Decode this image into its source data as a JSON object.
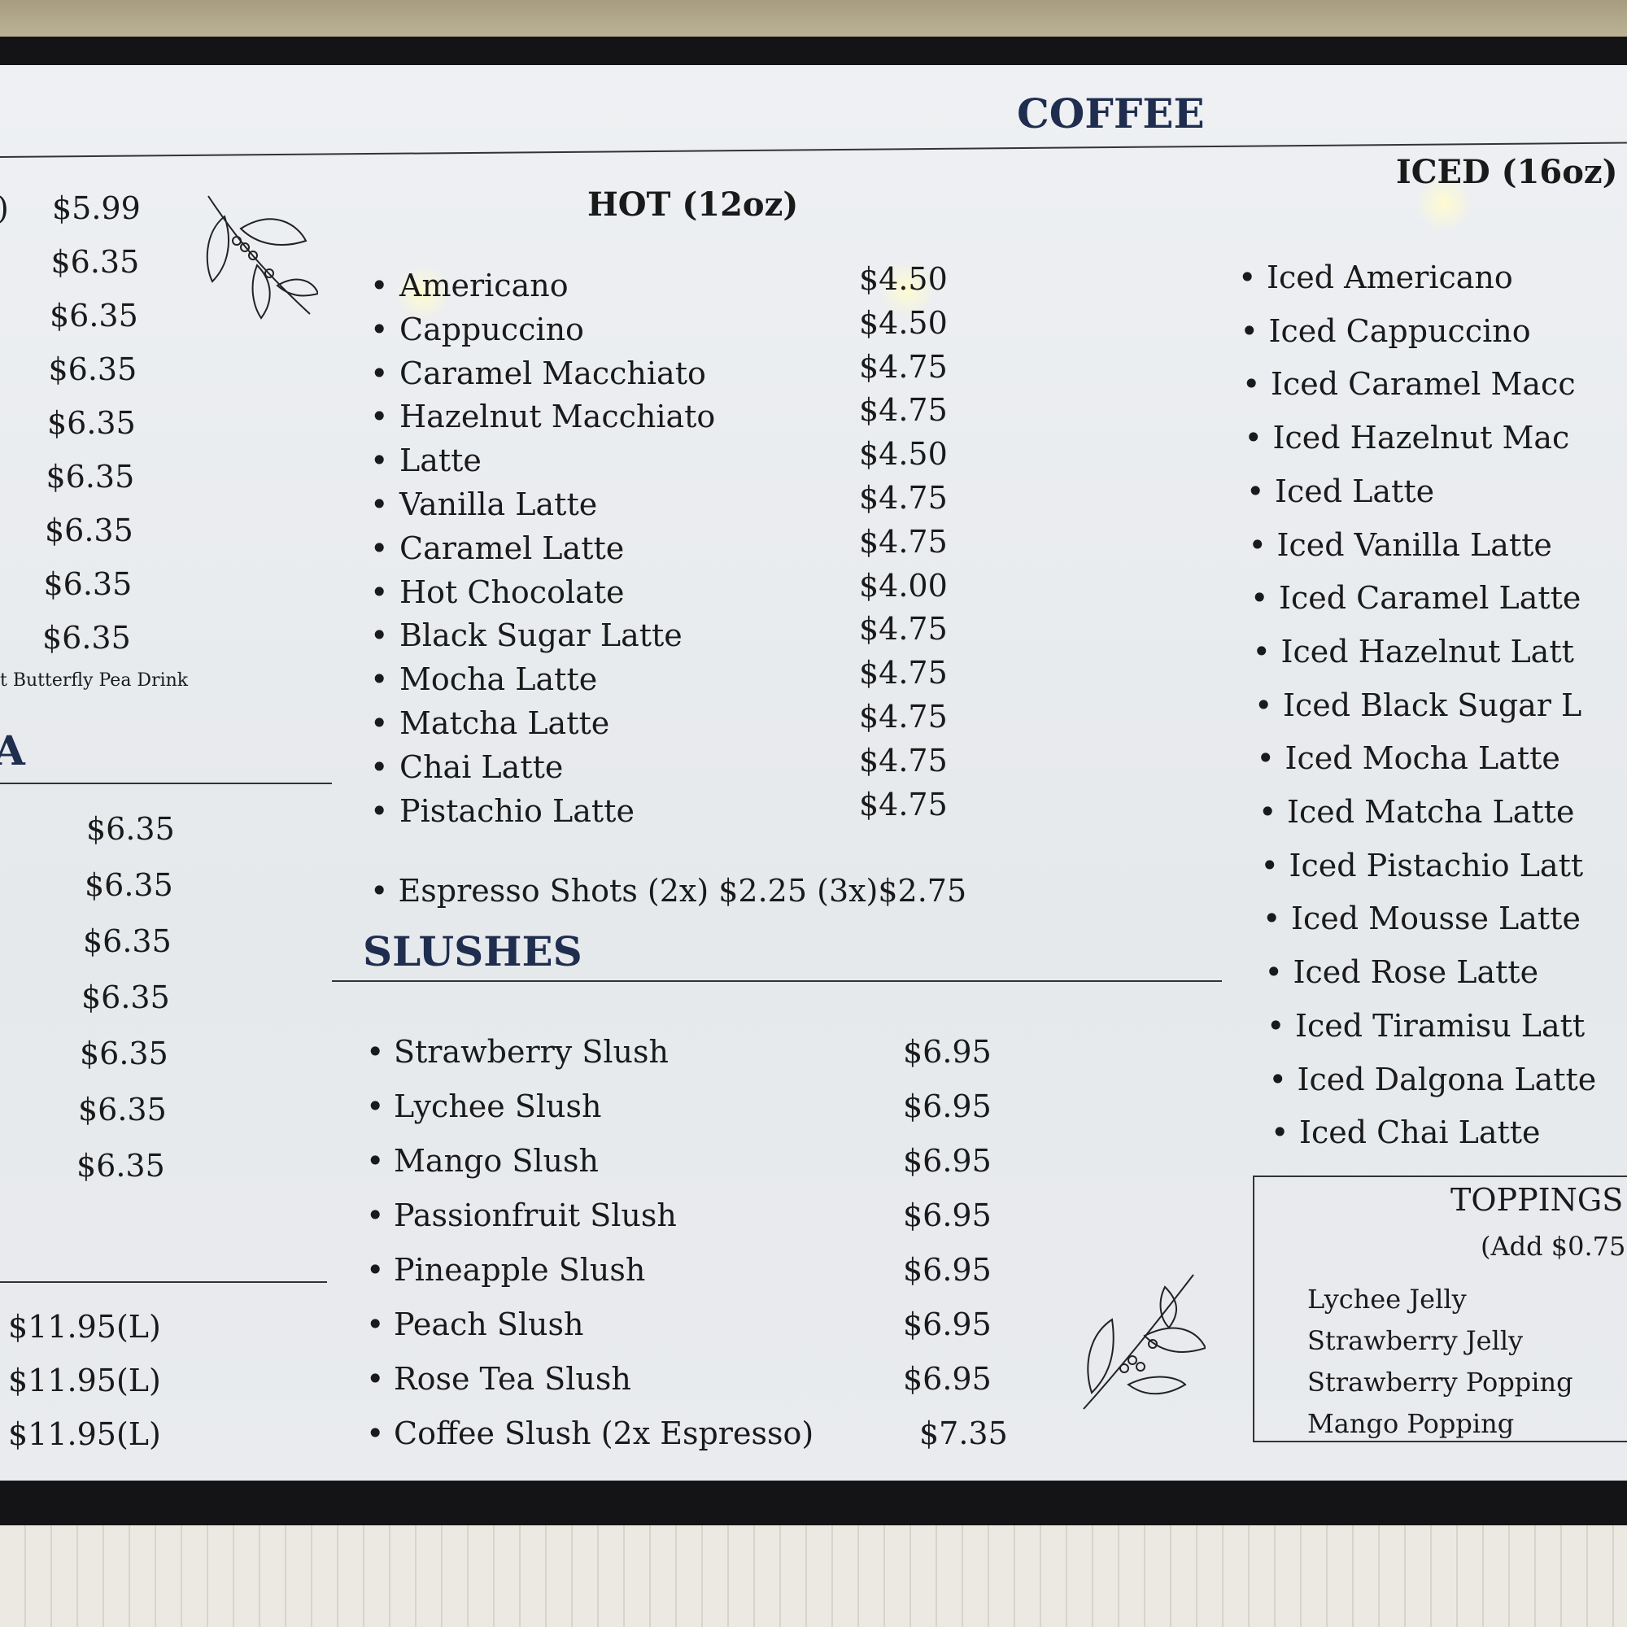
{
  "coffee": {
    "title": "COFFEE",
    "hot": {
      "heading": "HOT (12oz)",
      "items": [
        {
          "name": "Americano",
          "price": "$4.50"
        },
        {
          "name": "Cappuccino",
          "price": "$4.50"
        },
        {
          "name": "Caramel Macchiato",
          "price": "$4.75"
        },
        {
          "name": "Hazelnut Macchiato",
          "price": "$4.75"
        },
        {
          "name": "Latte",
          "price": "$4.50"
        },
        {
          "name": "Vanilla Latte",
          "price": "$4.75"
        },
        {
          "name": "Caramel Latte",
          "price": "$4.75"
        },
        {
          "name": "Hot Chocolate",
          "price": "$4.00"
        },
        {
          "name": "Black Sugar Latte",
          "price": "$4.75"
        },
        {
          "name": "Mocha Latte",
          "price": "$4.75"
        },
        {
          "name": "Matcha Latte",
          "price": "$4.75"
        },
        {
          "name": "Chai Latte",
          "price": "$4.75"
        },
        {
          "name": "Pistachio Latte",
          "price": "$4.75"
        }
      ],
      "espresso": "Espresso Shots (2x) $2.25 (3x)$2.75"
    },
    "iced": {
      "heading": "ICED (16oz)",
      "items": [
        "Iced Americano",
        "Iced Cappuccino",
        "Iced Caramel Macc",
        "Iced Hazelnut Mac",
        "Iced Latte",
        "Iced Vanilla Latte",
        "Iced Caramel Latte",
        "Iced Hazelnut Latt",
        "Iced Black Sugar L",
        "Iced Mocha Latte",
        "Iced Matcha Latte",
        "Iced Pistachio Latt",
        "Iced Mousse Latte",
        "Iced Rose Latte",
        "Iced Tiramisu Latt",
        "Iced Dalgona Latte",
        "Iced Chai Latte"
      ]
    }
  },
  "slushes": {
    "title": "SLUSHES",
    "items": [
      {
        "name": "Strawberry Slush",
        "price": "$6.95"
      },
      {
        "name": "Lychee Slush",
        "price": "$6.95"
      },
      {
        "name": "Mango Slush",
        "price": "$6.95"
      },
      {
        "name": "Passionfruit Slush",
        "price": "$6.95"
      },
      {
        "name": "Pineapple Slush",
        "price": "$6.95"
      },
      {
        "name": "Peach Slush",
        "price": "$6.95"
      },
      {
        "name": "Rose Tea Slush",
        "price": "$6.95"
      },
      {
        "name": "Coffee Slush (2x Espresso)",
        "price": "$7.35"
      }
    ]
  },
  "toppings": {
    "title": "TOPPINGS",
    "note": "(Add $0.75",
    "items": [
      "Lychee Jelly",
      "Strawberry Jelly",
      "Strawberry Popping",
      "Mango Popping"
    ]
  },
  "left": {
    "first_prices": [
      "$5.99",
      "$6.35",
      "$6.35",
      "$6.35",
      "$6.35",
      "$6.35",
      "$6.35",
      "$6.35",
      "$6.35"
    ],
    "first_partial": ")",
    "note": "t Butterfly Pea Drink",
    "section_partial": "A",
    "second_prices": [
      "$6.35",
      "$6.35",
      "$6.35",
      "$6.35",
      "$6.35",
      "$6.35",
      "$6.35"
    ],
    "third_prices": [
      "$11.95(L)",
      "$11.95(L)",
      "$11.95(L)"
    ]
  },
  "colors": {
    "heading": "#1f2d4f",
    "text": "#1a1a1a",
    "screen": "#eceef1"
  },
  "icons": [
    "coffee-branch-illustration"
  ]
}
